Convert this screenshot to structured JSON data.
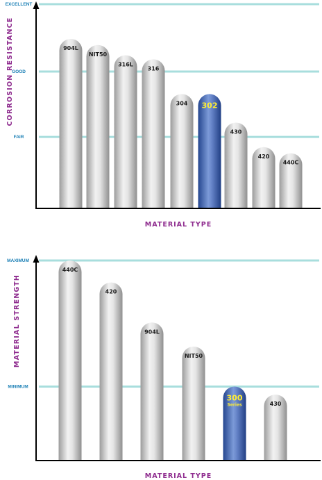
{
  "colors": {
    "reference_line": "#a8dedd",
    "bar_gray": "#c8c8c8",
    "bar_highlight": "#3f65b3",
    "highlight_text": "#ffee33",
    "axis_title": "#8e2b8e",
    "level_label": "#1a7fb5"
  },
  "chart_data": [
    {
      "type": "bar",
      "ylabel": "CORROSION RESISTANCE",
      "xlabel": "MATERIAL TYPE",
      "levels": [
        "EXCELLENT",
        "GOOD",
        "FAIR"
      ],
      "level_values": [
        100,
        67,
        35
      ],
      "ylim": [
        0,
        100
      ],
      "categories": [
        "904L",
        "NIT50",
        "316L",
        "316",
        "304",
        "302",
        "430",
        "420",
        "440C"
      ],
      "values": [
        83,
        80,
        75,
        73,
        56,
        56,
        42,
        30,
        27
      ],
      "highlight": "302",
      "grid": false
    },
    {
      "type": "bar",
      "ylabel": "MATERIAL STRENGTH",
      "xlabel": "MATERIAL TYPE",
      "levels": [
        "MAXIMUM",
        "MINIMUM"
      ],
      "level_values": [
        100,
        37
      ],
      "ylim": [
        0,
        100
      ],
      "categories": [
        "440C",
        "420",
        "904L",
        "NIT50",
        "300",
        "430"
      ],
      "sublabels": [
        "",
        "",
        "",
        "",
        "Series",
        ""
      ],
      "values": [
        100,
        89,
        69,
        57,
        37,
        33
      ],
      "highlight": "300",
      "grid": false
    }
  ]
}
